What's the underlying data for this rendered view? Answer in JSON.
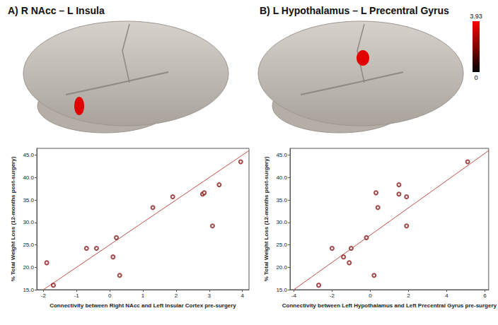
{
  "chart_data": [
    {
      "type": "scatter",
      "title": "A) R NAcc – L Insula",
      "x_label": "Connectivity between Right NAcc and Left Insular Cortex pre-surgery",
      "y_label": "% Total Weight Loss (12-months post-surgery)",
      "x": [
        -1.9,
        -1.7,
        -0.7,
        -0.4,
        0.1,
        0.2,
        0.3,
        1.3,
        1.9,
        2.8,
        2.85,
        3.1,
        3.3,
        3.95
      ],
      "values": [
        21.0,
        16.0,
        24.2,
        24.2,
        22.3,
        26.6,
        18.2,
        33.3,
        35.7,
        36.3,
        36.6,
        29.2,
        38.4,
        43.5
      ],
      "color": "#8b1a1a",
      "marker": "circle_open",
      "fit_line": {
        "x": [
          -2.0,
          4.2
        ],
        "y": [
          15.0,
          46.0
        ],
        "color": "#c0504d"
      },
      "xlim": [
        -2.2,
        4.2
      ],
      "ylim": [
        15,
        46.5
      ],
      "xticks": [
        -2,
        -1,
        0,
        1,
        2,
        3,
        4
      ],
      "yticks": [
        {
          "value": 15,
          "label": "15.0"
        },
        {
          "value": 20,
          "label": "20.0"
        },
        {
          "value": 25,
          "label": "25.0"
        },
        {
          "value": 30,
          "label": "30.0"
        },
        {
          "value": 35,
          "label": "35.0"
        },
        {
          "value": 40,
          "label": "40.0"
        },
        {
          "value": 45,
          "label": "45.0"
        }
      ],
      "grid": false
    },
    {
      "type": "scatter",
      "title": "B) L Hypothalamus – L Precentral Gyrus",
      "x_label": "Connectivity between Left Hypothalamus and Left Precentral Gyrus pre-surgery",
      "y_label": "% Total Weight Loss (12-months post-surgery)",
      "x": [
        -2.7,
        -2.0,
        -1.4,
        -1.1,
        -1.0,
        -0.2,
        0.2,
        0.3,
        0.4,
        1.5,
        1.5,
        1.9,
        1.9,
        5.1
      ],
      "values": [
        16.0,
        24.2,
        22.3,
        21.0,
        24.2,
        26.6,
        18.2,
        36.6,
        33.3,
        36.3,
        38.4,
        35.7,
        29.2,
        43.5
      ],
      "color": "#8b1a1a",
      "marker": "circle_open",
      "fit_line": {
        "x": [
          -4.0,
          6.2
        ],
        "y": [
          15.0,
          46.0
        ],
        "color": "#c0504d"
      },
      "xlim": [
        -4.2,
        6.2
      ],
      "ylim": [
        15,
        46.5
      ],
      "xticks": [
        -4,
        -2,
        0,
        2,
        4,
        6
      ],
      "yticks": [
        {
          "value": 15,
          "label": "15.0"
        },
        {
          "value": 20,
          "label": "20.0"
        },
        {
          "value": 25,
          "label": "25.0"
        },
        {
          "value": 30,
          "label": "30.0"
        },
        {
          "value": 35,
          "label": "35.0"
        },
        {
          "value": 40,
          "label": "40.0"
        },
        {
          "value": 45,
          "label": "45.0"
        }
      ],
      "grid": false,
      "colorbar": {
        "range": [
          0,
          3.93
        ],
        "ticks": [
          0,
          3.93
        ]
      }
    }
  ]
}
